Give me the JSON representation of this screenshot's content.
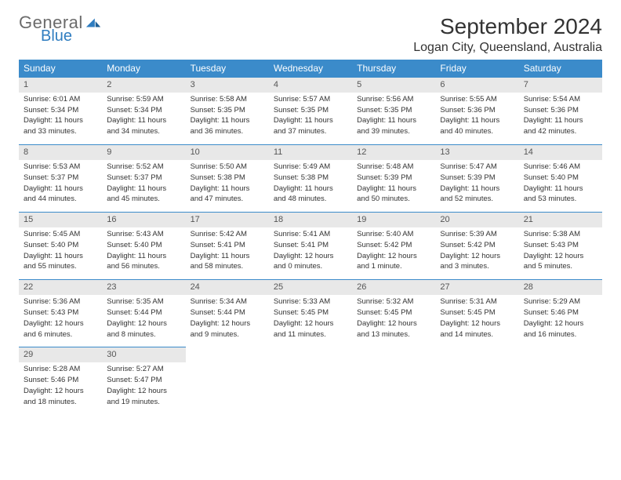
{
  "brand": {
    "general": "General",
    "blue": "Blue"
  },
  "title": "September 2024",
  "location": "Logan City, Queensland, Australia",
  "colors": {
    "header_bg": "#3b8bca",
    "header_text": "#ffffff",
    "daynum_bg": "#e8e8e8",
    "row_divider": "#3b8bca",
    "text": "#333333",
    "logo_gray": "#6b6b6b",
    "logo_blue": "#2f7dc0",
    "background": "#ffffff"
  },
  "weekdays": [
    "Sunday",
    "Monday",
    "Tuesday",
    "Wednesday",
    "Thursday",
    "Friday",
    "Saturday"
  ],
  "weeks": [
    [
      {
        "n": "1",
        "sunrise": "Sunrise: 6:01 AM",
        "sunset": "Sunset: 5:34 PM",
        "dl1": "Daylight: 11 hours",
        "dl2": "and 33 minutes."
      },
      {
        "n": "2",
        "sunrise": "Sunrise: 5:59 AM",
        "sunset": "Sunset: 5:34 PM",
        "dl1": "Daylight: 11 hours",
        "dl2": "and 34 minutes."
      },
      {
        "n": "3",
        "sunrise": "Sunrise: 5:58 AM",
        "sunset": "Sunset: 5:35 PM",
        "dl1": "Daylight: 11 hours",
        "dl2": "and 36 minutes."
      },
      {
        "n": "4",
        "sunrise": "Sunrise: 5:57 AM",
        "sunset": "Sunset: 5:35 PM",
        "dl1": "Daylight: 11 hours",
        "dl2": "and 37 minutes."
      },
      {
        "n": "5",
        "sunrise": "Sunrise: 5:56 AM",
        "sunset": "Sunset: 5:35 PM",
        "dl1": "Daylight: 11 hours",
        "dl2": "and 39 minutes."
      },
      {
        "n": "6",
        "sunrise": "Sunrise: 5:55 AM",
        "sunset": "Sunset: 5:36 PM",
        "dl1": "Daylight: 11 hours",
        "dl2": "and 40 minutes."
      },
      {
        "n": "7",
        "sunrise": "Sunrise: 5:54 AM",
        "sunset": "Sunset: 5:36 PM",
        "dl1": "Daylight: 11 hours",
        "dl2": "and 42 minutes."
      }
    ],
    [
      {
        "n": "8",
        "sunrise": "Sunrise: 5:53 AM",
        "sunset": "Sunset: 5:37 PM",
        "dl1": "Daylight: 11 hours",
        "dl2": "and 44 minutes."
      },
      {
        "n": "9",
        "sunrise": "Sunrise: 5:52 AM",
        "sunset": "Sunset: 5:37 PM",
        "dl1": "Daylight: 11 hours",
        "dl2": "and 45 minutes."
      },
      {
        "n": "10",
        "sunrise": "Sunrise: 5:50 AM",
        "sunset": "Sunset: 5:38 PM",
        "dl1": "Daylight: 11 hours",
        "dl2": "and 47 minutes."
      },
      {
        "n": "11",
        "sunrise": "Sunrise: 5:49 AM",
        "sunset": "Sunset: 5:38 PM",
        "dl1": "Daylight: 11 hours",
        "dl2": "and 48 minutes."
      },
      {
        "n": "12",
        "sunrise": "Sunrise: 5:48 AM",
        "sunset": "Sunset: 5:39 PM",
        "dl1": "Daylight: 11 hours",
        "dl2": "and 50 minutes."
      },
      {
        "n": "13",
        "sunrise": "Sunrise: 5:47 AM",
        "sunset": "Sunset: 5:39 PM",
        "dl1": "Daylight: 11 hours",
        "dl2": "and 52 minutes."
      },
      {
        "n": "14",
        "sunrise": "Sunrise: 5:46 AM",
        "sunset": "Sunset: 5:40 PM",
        "dl1": "Daylight: 11 hours",
        "dl2": "and 53 minutes."
      }
    ],
    [
      {
        "n": "15",
        "sunrise": "Sunrise: 5:45 AM",
        "sunset": "Sunset: 5:40 PM",
        "dl1": "Daylight: 11 hours",
        "dl2": "and 55 minutes."
      },
      {
        "n": "16",
        "sunrise": "Sunrise: 5:43 AM",
        "sunset": "Sunset: 5:40 PM",
        "dl1": "Daylight: 11 hours",
        "dl2": "and 56 minutes."
      },
      {
        "n": "17",
        "sunrise": "Sunrise: 5:42 AM",
        "sunset": "Sunset: 5:41 PM",
        "dl1": "Daylight: 11 hours",
        "dl2": "and 58 minutes."
      },
      {
        "n": "18",
        "sunrise": "Sunrise: 5:41 AM",
        "sunset": "Sunset: 5:41 PM",
        "dl1": "Daylight: 12 hours",
        "dl2": "and 0 minutes."
      },
      {
        "n": "19",
        "sunrise": "Sunrise: 5:40 AM",
        "sunset": "Sunset: 5:42 PM",
        "dl1": "Daylight: 12 hours",
        "dl2": "and 1 minute."
      },
      {
        "n": "20",
        "sunrise": "Sunrise: 5:39 AM",
        "sunset": "Sunset: 5:42 PM",
        "dl1": "Daylight: 12 hours",
        "dl2": "and 3 minutes."
      },
      {
        "n": "21",
        "sunrise": "Sunrise: 5:38 AM",
        "sunset": "Sunset: 5:43 PM",
        "dl1": "Daylight: 12 hours",
        "dl2": "and 5 minutes."
      }
    ],
    [
      {
        "n": "22",
        "sunrise": "Sunrise: 5:36 AM",
        "sunset": "Sunset: 5:43 PM",
        "dl1": "Daylight: 12 hours",
        "dl2": "and 6 minutes."
      },
      {
        "n": "23",
        "sunrise": "Sunrise: 5:35 AM",
        "sunset": "Sunset: 5:44 PM",
        "dl1": "Daylight: 12 hours",
        "dl2": "and 8 minutes."
      },
      {
        "n": "24",
        "sunrise": "Sunrise: 5:34 AM",
        "sunset": "Sunset: 5:44 PM",
        "dl1": "Daylight: 12 hours",
        "dl2": "and 9 minutes."
      },
      {
        "n": "25",
        "sunrise": "Sunrise: 5:33 AM",
        "sunset": "Sunset: 5:45 PM",
        "dl1": "Daylight: 12 hours",
        "dl2": "and 11 minutes."
      },
      {
        "n": "26",
        "sunrise": "Sunrise: 5:32 AM",
        "sunset": "Sunset: 5:45 PM",
        "dl1": "Daylight: 12 hours",
        "dl2": "and 13 minutes."
      },
      {
        "n": "27",
        "sunrise": "Sunrise: 5:31 AM",
        "sunset": "Sunset: 5:45 PM",
        "dl1": "Daylight: 12 hours",
        "dl2": "and 14 minutes."
      },
      {
        "n": "28",
        "sunrise": "Sunrise: 5:29 AM",
        "sunset": "Sunset: 5:46 PM",
        "dl1": "Daylight: 12 hours",
        "dl2": "and 16 minutes."
      }
    ],
    [
      {
        "n": "29",
        "sunrise": "Sunrise: 5:28 AM",
        "sunset": "Sunset: 5:46 PM",
        "dl1": "Daylight: 12 hours",
        "dl2": "and 18 minutes."
      },
      {
        "n": "30",
        "sunrise": "Sunrise: 5:27 AM",
        "sunset": "Sunset: 5:47 PM",
        "dl1": "Daylight: 12 hours",
        "dl2": "and 19 minutes."
      },
      {
        "empty": true
      },
      {
        "empty": true
      },
      {
        "empty": true
      },
      {
        "empty": true
      },
      {
        "empty": true
      }
    ]
  ]
}
